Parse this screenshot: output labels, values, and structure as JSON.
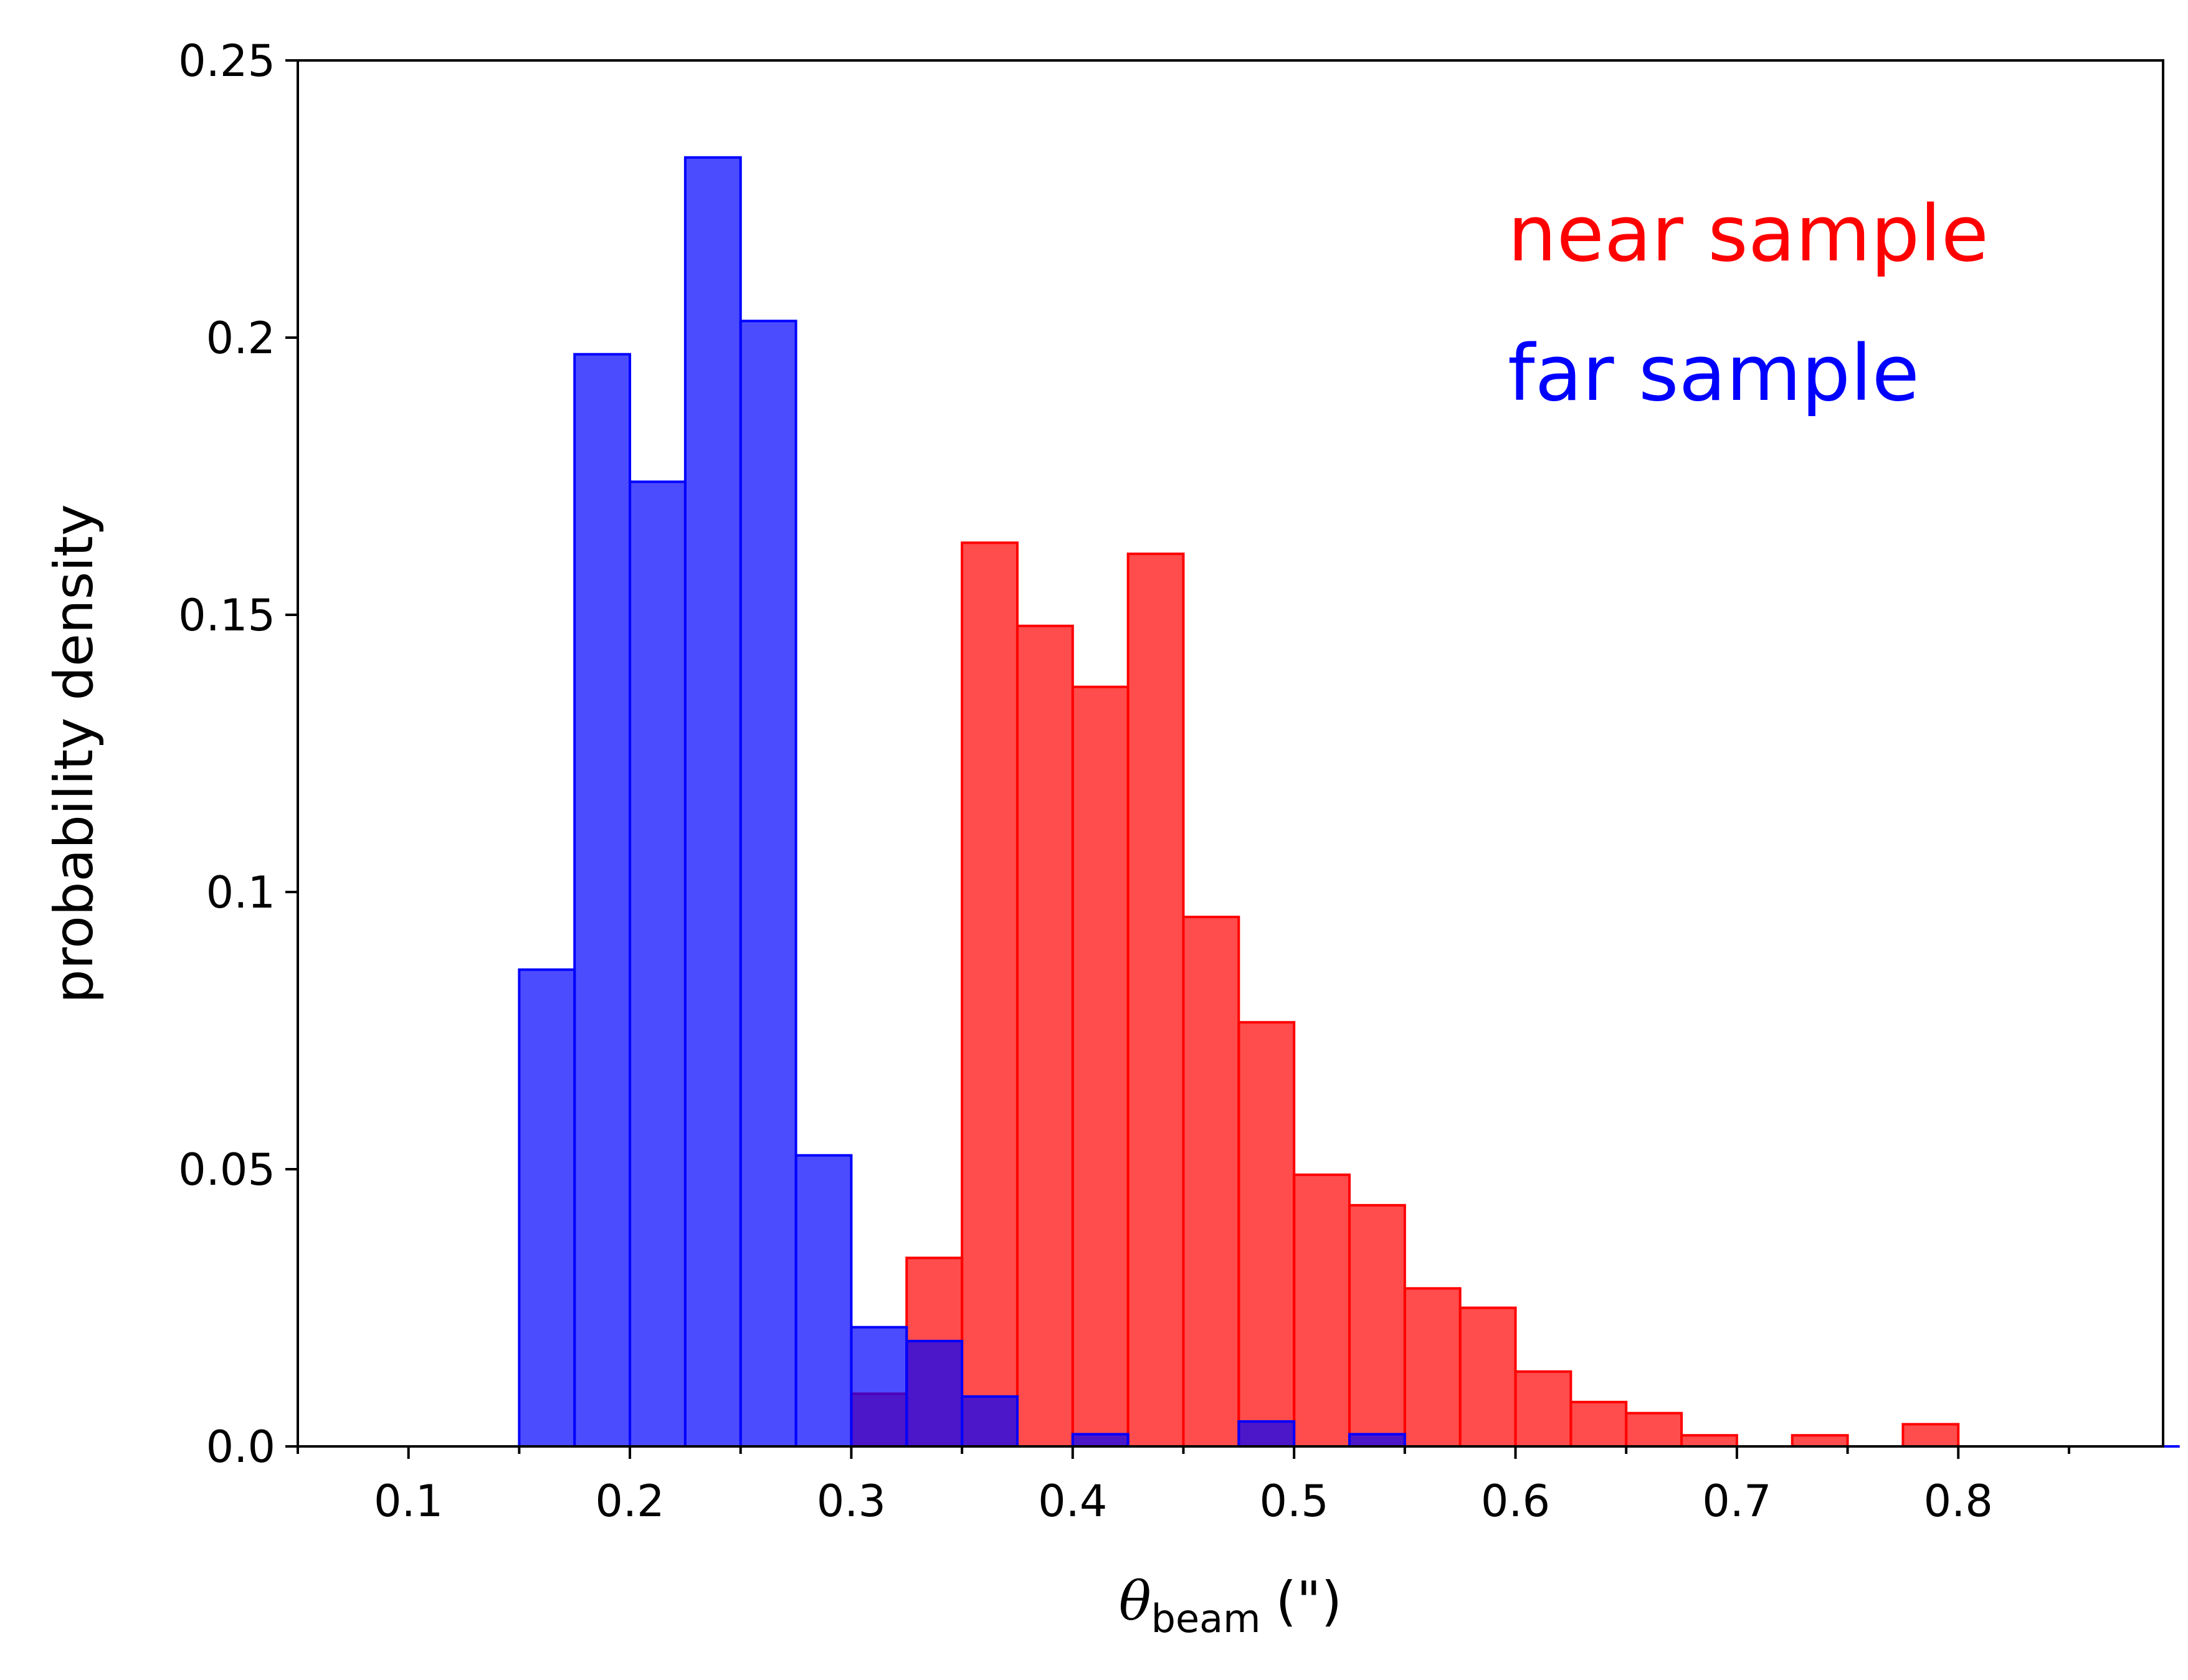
{
  "chart_data": {
    "type": "bar",
    "title": "",
    "xlabel_symbol": "θ",
    "xlabel_subscript": "beam",
    "xlabel_unit": "(\")",
    "ylabel": "probability density",
    "xlim": [
      0.05,
      0.8925
    ],
    "ylim": [
      0,
      0.25
    ],
    "bin_width": 0.025,
    "x_ticks": [
      "0.1",
      "0.2",
      "0.3",
      "0.4",
      "0.5",
      "0.6",
      "0.7",
      "0.8"
    ],
    "y_ticks": [
      "0.0",
      "0.05",
      "0.1",
      "0.15",
      "0.2",
      "0.25"
    ],
    "legend_position": "top-right",
    "series": [
      {
        "name": "near sample",
        "color": "#ff0000",
        "bin_starts": [
          0.1,
          0.125,
          0.15,
          0.175,
          0.2,
          0.225,
          0.25,
          0.275,
          0.3,
          0.325,
          0.35,
          0.375,
          0.4,
          0.425,
          0.45,
          0.475,
          0.5,
          0.525,
          0.55,
          0.575,
          0.6,
          0.625,
          0.65,
          0.675,
          0.7,
          0.725,
          0.75,
          0.775,
          0.8,
          0.825,
          0.85,
          0.875
        ],
        "values": [
          0,
          0,
          0,
          0,
          0,
          0,
          0,
          0,
          0.0095,
          0.034,
          0.163,
          0.148,
          0.137,
          0.161,
          0.0955,
          0.0765,
          0.049,
          0.0435,
          0.0285,
          0.025,
          0.0135,
          0.008,
          0.006,
          0.002,
          0,
          0.002,
          0,
          0.004,
          0,
          0,
          0,
          0
        ]
      },
      {
        "name": "far sample",
        "color": "#0000ff",
        "bin_starts": [
          0.1,
          0.125,
          0.15,
          0.175,
          0.2,
          0.225,
          0.25,
          0.275,
          0.3,
          0.325,
          0.35,
          0.375,
          0.4,
          0.425,
          0.45,
          0.475,
          0.5,
          0.525,
          0.55,
          0.575,
          0.6,
          0.625,
          0.65,
          0.675,
          0.7,
          0.725,
          0.75,
          0.775,
          0.8,
          0.825,
          0.85,
          0.875
        ],
        "values": [
          0,
          0,
          0.086,
          0.197,
          0.174,
          0.2325,
          0.203,
          0.0525,
          0.0215,
          0.019,
          0.009,
          0,
          0.0022,
          0,
          0,
          0.0045,
          0,
          0.0022,
          0,
          0,
          0,
          0,
          0,
          0,
          0,
          0,
          0,
          0,
          0,
          0,
          0,
          0
        ]
      }
    ]
  }
}
